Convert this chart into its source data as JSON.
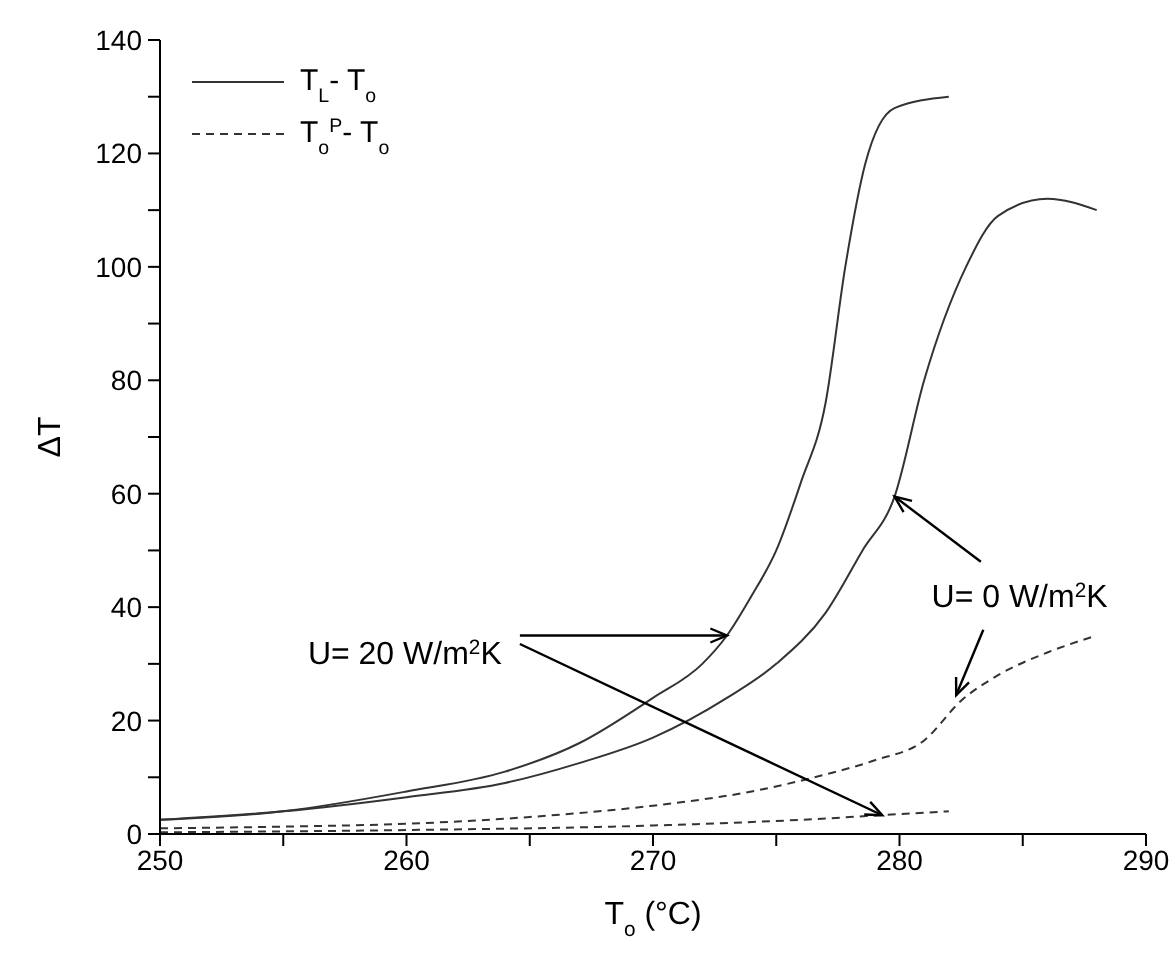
{
  "chart_data": {
    "type": "line",
    "xlabel": "T$_{o}$ (°C)",
    "ylabel": "ΔT",
    "annotations": [
      {
        "text": "U= 20 W/m$^{2}$K",
        "x": 273,
        "y": 35
      },
      {
        "text": "U= 0 W/m$^{2}$K",
        "x": 279.8,
        "y": 59.5
      }
    ],
    "series": [
      {
        "name": "T$_{L}$- T$_{o}$",
        "color": "#333333",
        "line_style": "solid",
        "x": [
          250,
          255,
          260,
          264,
          267,
          270,
          272,
          273,
          274,
          275,
          276,
          277,
          277.8,
          278.6,
          279.8,
          282
        ],
        "values": [
          2.5,
          4,
          7.5,
          11,
          16,
          24,
          30,
          35,
          42,
          50,
          62,
          76,
          100,
          118,
          128,
          130
        ]
      },
      {
        "color": "#333333",
        "line_style": "solid",
        "x": [
          250,
          255,
          260,
          264,
          267,
          270,
          273,
          275,
          277,
          278.5,
          279.8,
          281,
          282.7,
          284,
          286,
          288
        ],
        "values": [
          2.5,
          4,
          6.5,
          9,
          12.5,
          17,
          24,
          30,
          39,
          50,
          59.5,
          80,
          100,
          109,
          112,
          110
        ]
      },
      {
        "name": "T$_{o}$$^{P}$- T$_{o}$",
        "color": "#333333",
        "line_style": "dashed",
        "x": [
          250,
          255,
          260,
          265,
          270,
          274,
          277,
          279,
          281,
          282.5,
          284,
          286,
          288
        ],
        "values": [
          1,
          1.3,
          1.8,
          3,
          5,
          7.5,
          10.5,
          13,
          16.5,
          23.5,
          28,
          32,
          35
        ]
      },
      {
        "color": "#333333",
        "line_style": "dashed",
        "x": [
          250,
          260,
          270,
          276,
          280,
          282
        ],
        "values": [
          0.3,
          0.7,
          1.5,
          2.5,
          3.5,
          4
        ]
      }
    ],
    "xlim": [
      250,
      290
    ],
    "xticks": [
      250,
      {
        "value": 255,
        "label": null
      },
      260,
      {
        "value": 265,
        "label": null
      },
      270,
      {
        "value": 275,
        "label": null
      },
      280,
      {
        "value": 285,
        "label": null
      },
      290
    ],
    "ylim": [
      0,
      140
    ],
    "yticks": [
      0,
      {
        "value": 10,
        "label": null
      },
      20,
      {
        "value": 30,
        "label": null
      },
      40,
      {
        "value": 50,
        "label": null
      },
      60,
      {
        "value": 70,
        "label": null
      },
      80,
      {
        "value": 90,
        "label": null
      },
      100,
      {
        "value": 110,
        "label": null
      },
      120,
      {
        "value": 130,
        "label": null
      },
      140
    ],
    "grid": false,
    "legend": "top left",
    "marker": "none"
  }
}
